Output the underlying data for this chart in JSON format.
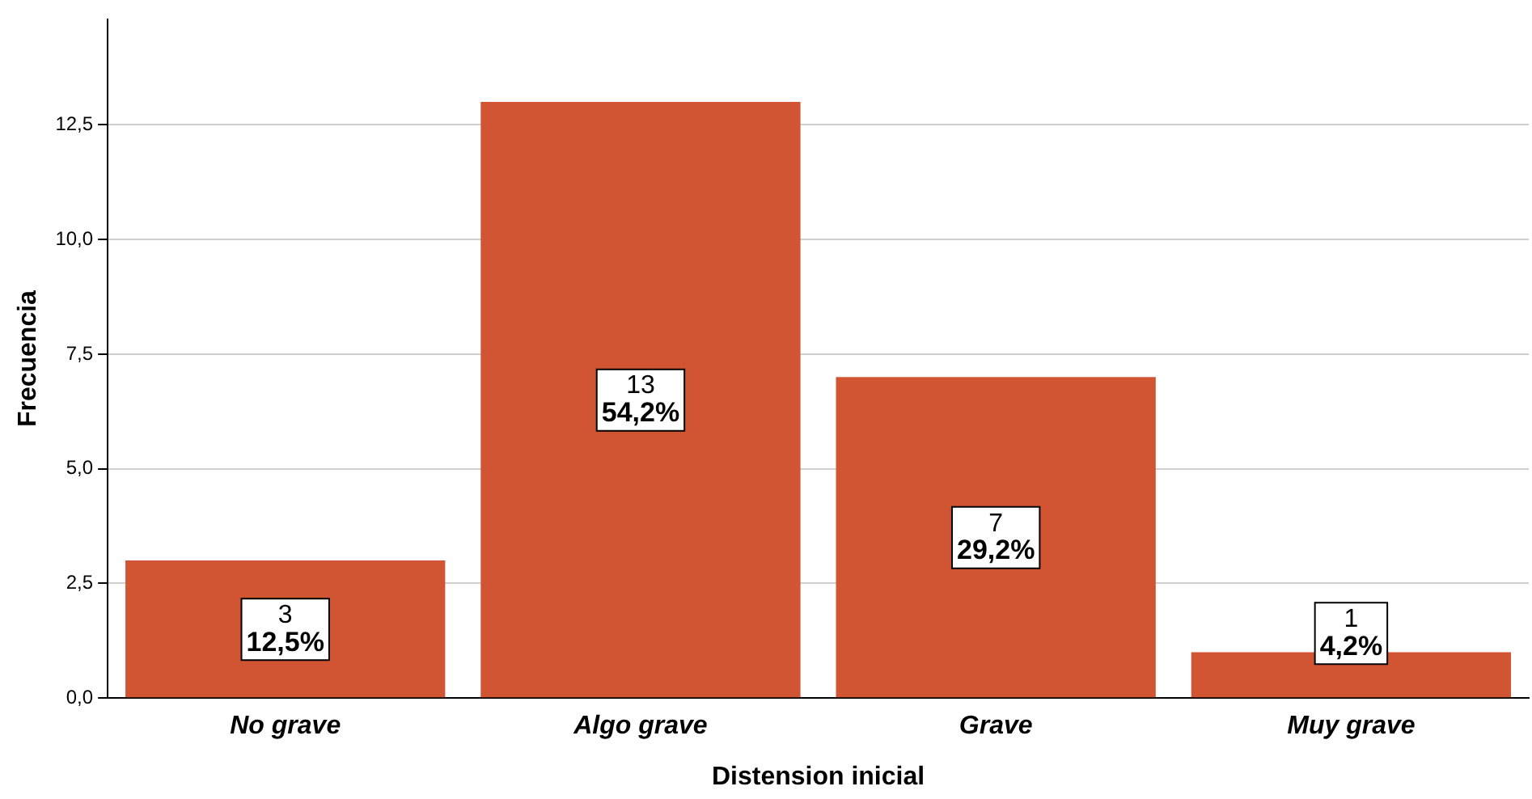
{
  "chart_data": {
    "type": "bar",
    "xlabel": "Distension inicial",
    "ylabel": "Frecuencia",
    "categories": [
      "No grave",
      "Algo grave",
      "Grave",
      "Muy grave"
    ],
    "values": [
      3,
      13,
      7,
      1
    ],
    "color": "#d15433",
    "value_labels": [
      "3\n12,5%",
      "13\n54,2%",
      "7\n29,2%",
      "1\n4,2%"
    ],
    "ylim": [
      0,
      14.8
    ],
    "yticks": [
      {
        "value": 0,
        "label": "0,0"
      },
      {
        "value": 2.5,
        "label": "2,5"
      },
      {
        "value": 5,
        "label": "5,0"
      },
      {
        "value": 7.5,
        "label": "7,5"
      },
      {
        "value": 10,
        "label": "10,0"
      },
      {
        "value": 12.5,
        "label": "12,5"
      }
    ],
    "grid": "y",
    "legend": false
  }
}
